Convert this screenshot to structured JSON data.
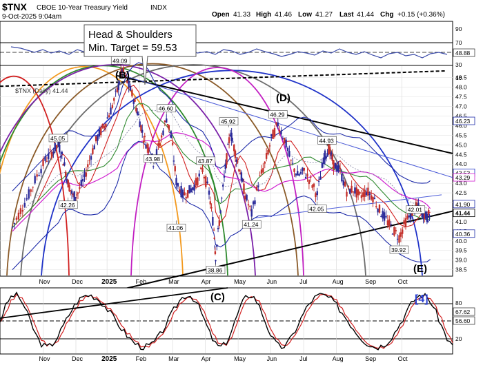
{
  "header": {
    "symbol": "$TNX",
    "name": "CBOE 10-Year Treasury Yield",
    "exchange": "INDX",
    "datetime": "9-Oct-2025 9:04am",
    "open_label": "Open",
    "open": "41.33",
    "high_label": "High",
    "high": "41.46",
    "low_label": "Low",
    "low": "41.27",
    "last_label": "Last",
    "last": "41.44",
    "chg_label": "Chg",
    "chg": "+0.15 (+0.36%)"
  },
  "annotations": {
    "hs_line1": "Head & Shoulders",
    "hs_line2": "Min. Target = 59.53",
    "wave_b": "(B)",
    "wave_c": "(C)",
    "wave_d": "(D)",
    "wave_e": "(E)",
    "wave_4": "[4]",
    "series_label": "$TNX (Daily) 41.44"
  },
  "colors": {
    "up": "#2b2b9a",
    "down": "#c4302b",
    "red_ma": "#d11f1f",
    "green_ma": "#2f8a2f",
    "blue_ma": "#1f32c8",
    "magenta_ma": "#d01fd0",
    "navy_band": "#1d2aa8",
    "tag_bg": "#ffffff"
  },
  "chart_data": {
    "type": "candlestick",
    "title": "$TNX (Daily) 41.44",
    "ylim": [
      38.2,
      49.1
    ],
    "x_ticks": [
      "Nov",
      "Dec",
      "2025",
      "Feb",
      "Mar",
      "Apr",
      "May",
      "Jun",
      "Jul",
      "Aug",
      "Sep",
      "Oct"
    ],
    "y_ticks": [
      "38.5",
      "39.0",
      "39.5",
      "40.0",
      "40.5",
      "41.0",
      "41.5",
      "42.0",
      "42.5",
      "43.0",
      "43.5",
      "44.0",
      "44.5",
      "45.0",
      "45.5",
      "46.0",
      "46.5",
      "47.0",
      "47.5",
      "48.0",
      "48.5"
    ],
    "price_labels": [
      {
        "text": "49.09",
        "value": 49.09,
        "month": 3.3
      },
      {
        "text": "46.60",
        "value": 46.6,
        "month": 4.7
      },
      {
        "text": "45.92",
        "value": 45.92,
        "month": 6.6
      },
      {
        "text": "46.29",
        "value": 46.29,
        "month": 8.1
      },
      {
        "text": "45.05",
        "value": 45.05,
        "month": 1.4
      },
      {
        "text": "43.87",
        "value": 43.87,
        "month": 5.9
      },
      {
        "text": "44.93",
        "value": 44.93,
        "month": 9.6
      },
      {
        "text": "43.98",
        "value": 43.98,
        "month": 4.3
      },
      {
        "text": "42.26",
        "value": 42.26,
        "month": 1.7
      },
      {
        "text": "41.06",
        "value": 41.06,
        "month": 5.0
      },
      {
        "text": "41.24",
        "value": 41.24,
        "month": 7.3
      },
      {
        "text": "42.05",
        "value": 42.05,
        "month": 9.3
      },
      {
        "text": "42.01",
        "value": 42.01,
        "month": 12.3
      },
      {
        "text": "39.92",
        "value": 39.92,
        "month": 11.8
      },
      {
        "text": "38.86",
        "value": 38.86,
        "month": 6.2
      }
    ],
    "right_tags": [
      {
        "text": "46.23",
        "value": 46.23,
        "color": "#1d2aa8"
      },
      {
        "text": "43.53",
        "value": 43.53,
        "color": "#1f32c8"
      },
      {
        "text": "43.29",
        "value": 43.29,
        "color": "#d01fd0"
      },
      {
        "text": "41.90",
        "value": 41.9,
        "color": "#1d2aa8"
      },
      {
        "text": "41.44",
        "value": 41.44,
        "color": "#000000"
      },
      {
        "text": "40.36",
        "value": 40.36,
        "color": "#1d2aa8"
      }
    ],
    "close": [
      [
        0.0,
        40.7
      ],
      [
        0.25,
        41.6
      ],
      [
        0.5,
        42.4
      ],
      [
        0.75,
        43.4
      ],
      [
        1.0,
        44.2
      ],
      [
        1.2,
        44.6
      ],
      [
        1.4,
        45.05
      ],
      [
        1.55,
        44.2
      ],
      [
        1.7,
        43.0
      ],
      [
        1.85,
        42.3
      ],
      [
        2.0,
        42.5
      ],
      [
        2.2,
        43.3
      ],
      [
        2.4,
        44.5
      ],
      [
        2.6,
        45.4
      ],
      [
        2.8,
        46.0
      ],
      [
        3.0,
        46.8
      ],
      [
        3.2,
        47.8
      ],
      [
        3.35,
        48.9
      ],
      [
        3.5,
        48.3
      ],
      [
        3.7,
        47.4
      ],
      [
        3.85,
        46.5
      ],
      [
        4.0,
        45.4
      ],
      [
        4.15,
        44.8
      ],
      [
        4.3,
        44.1
      ],
      [
        4.5,
        45.1
      ],
      [
        4.7,
        46.4
      ],
      [
        4.85,
        45.4
      ],
      [
        5.0,
        43.1
      ],
      [
        5.2,
        42.4
      ],
      [
        5.4,
        42.6
      ],
      [
        5.6,
        43.0
      ],
      [
        5.8,
        43.7
      ],
      [
        6.0,
        42.5
      ],
      [
        6.15,
        40.6
      ],
      [
        6.2,
        39.2
      ],
      [
        6.35,
        41.6
      ],
      [
        6.5,
        43.8
      ],
      [
        6.65,
        45.7
      ],
      [
        6.8,
        44.6
      ],
      [
        6.95,
        43.6
      ],
      [
        7.1,
        42.4
      ],
      [
        7.3,
        41.4
      ],
      [
        7.5,
        43.0
      ],
      [
        7.7,
        44.0
      ],
      [
        7.9,
        45.3
      ],
      [
        8.1,
        46.1
      ],
      [
        8.3,
        45.3
      ],
      [
        8.5,
        44.1
      ],
      [
        8.7,
        43.4
      ],
      [
        8.9,
        43.6
      ],
      [
        9.1,
        43.1
      ],
      [
        9.3,
        42.4
      ],
      [
        9.5,
        44.3
      ],
      [
        9.65,
        44.8
      ],
      [
        9.8,
        44.0
      ],
      [
        10.0,
        43.6
      ],
      [
        10.2,
        42.6
      ],
      [
        10.4,
        42.7
      ],
      [
        10.6,
        42.3
      ],
      [
        10.8,
        42.6
      ],
      [
        11.0,
        42.3
      ],
      [
        11.2,
        41.6
      ],
      [
        11.4,
        41.1
      ],
      [
        11.6,
        40.6
      ],
      [
        11.8,
        40.2
      ],
      [
        12.0,
        41.0
      ],
      [
        12.2,
        41.5
      ],
      [
        12.35,
        41.8
      ],
      [
        12.5,
        41.5
      ],
      [
        12.65,
        41.2
      ],
      [
        12.75,
        41.44
      ]
    ],
    "main_indicators_top": {
      "labels": [
        "90",
        "70",
        "50",
        "30"
      ],
      "right_tag": "48.88"
    },
    "stoch_panel": {
      "labels": [
        "80",
        "50",
        "20"
      ],
      "right_tags": [
        "67.62",
        "56.60"
      ]
    }
  }
}
